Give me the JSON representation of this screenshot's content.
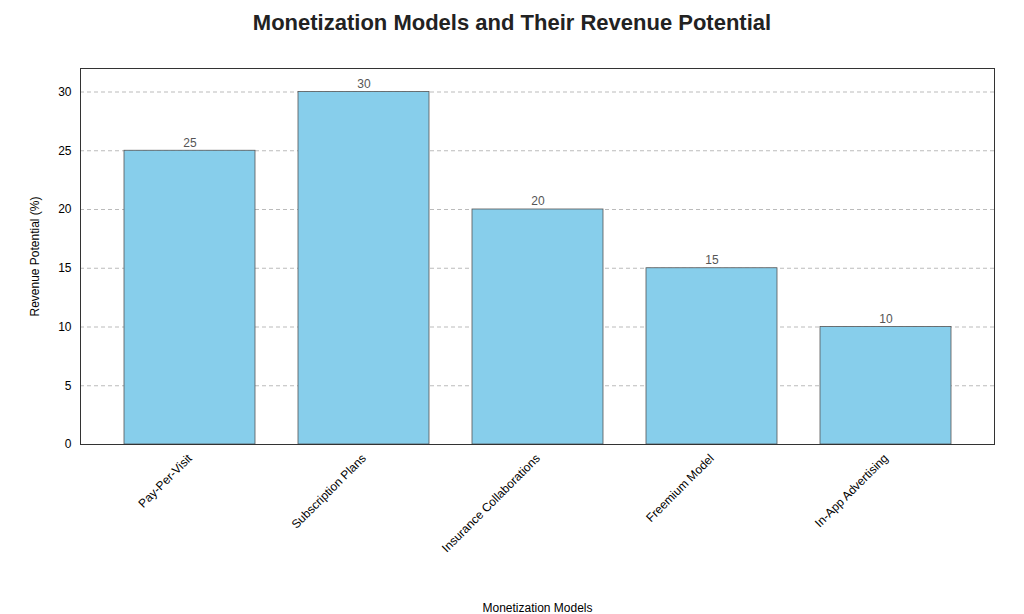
{
  "chart_data": {
    "type": "bar",
    "title": "Monetization Models and Their Revenue Potential",
    "xlabel": "Monetization Models",
    "ylabel": "Revenue Potential (%)",
    "categories": [
      "Pay-Per-Visit",
      "Subscription Plans",
      "Insurance Collaborations",
      "Freemium Model",
      "In-App Advertising"
    ],
    "values": [
      25,
      30,
      20,
      15,
      10
    ],
    "color": "#87CEEB",
    "ylim": [
      0,
      32
    ],
    "yticks": [
      0,
      5,
      10,
      15,
      20,
      25,
      30
    ],
    "grid": true,
    "data_labels": true
  }
}
